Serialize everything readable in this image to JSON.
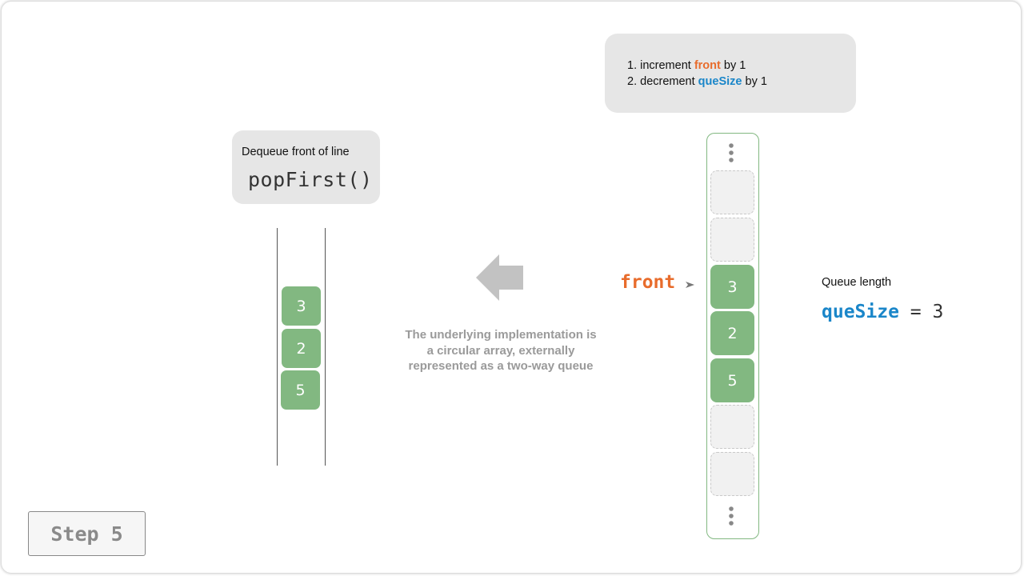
{
  "steps": {
    "line1": {
      "num": "1.",
      "pre": "increment",
      "var": "front",
      "post": "by 1"
    },
    "line2": {
      "num": "2.",
      "pre": "decrement",
      "var": "queSize",
      "post": "by 1"
    }
  },
  "method": {
    "label": "Dequeue front of line",
    "code": "popFirst()"
  },
  "left_deque": {
    "values": [
      "3",
      "2",
      "5"
    ]
  },
  "caption": "The underlying implementation is a circular array, externally represented as a two-way queue",
  "array": {
    "slots": [
      "",
      "",
      "3",
      "2",
      "5",
      "",
      ""
    ],
    "pointer_label": "front",
    "pointer_index": 2
  },
  "queue_length": {
    "label": "Queue length",
    "name": "queSize",
    "equals": "=",
    "value": "3"
  },
  "step": {
    "label": "Step 5"
  },
  "colors": {
    "green": "#82b881",
    "orange": "#e86c2c",
    "blue": "#1a86c9",
    "gray_box": "#e6e6e6"
  },
  "icons": [
    "more-vertical-icon",
    "arrow-left-icon",
    "pointer-arrow-icon"
  ]
}
